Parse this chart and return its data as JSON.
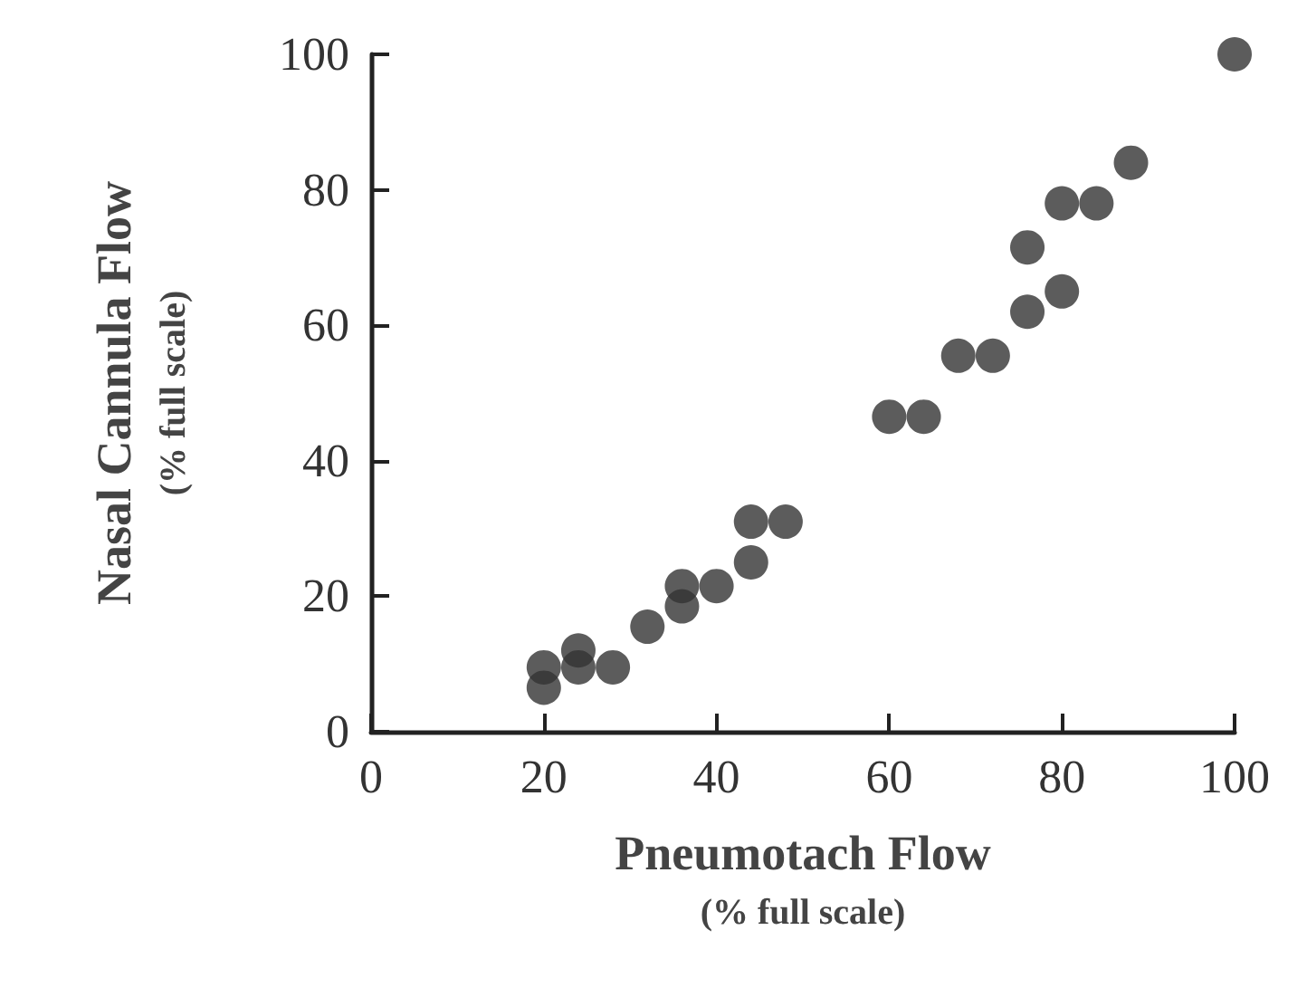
{
  "chart_data": {
    "type": "scatter",
    "xlabel": "Pneumotach Flow\n(% full scale)",
    "ylabel": "Nasal Cannula Flow\n(% full scale)",
    "x": [
      20,
      20,
      24,
      24,
      28,
      32,
      36,
      36,
      40,
      44,
      44,
      48,
      60,
      64,
      68,
      72,
      76,
      80,
      76,
      80,
      84,
      88,
      100
    ],
    "values": [
      6.5,
      9.5,
      12,
      9.5,
      9.5,
      15.5,
      18.5,
      21.5,
      21.5,
      25,
      31,
      31,
      46.5,
      46.5,
      55.5,
      55.5,
      62,
      65,
      71.5,
      78,
      78,
      84,
      100
    ],
    "color": "#333333",
    "marker": "circle",
    "grid": false,
    "xlim": [
      0,
      100
    ],
    "xticks": [
      0,
      20,
      40,
      60,
      80,
      100
    ],
    "ylim": [
      0,
      100
    ],
    "yticks": [
      0,
      20,
      40,
      60,
      80,
      100
    ]
  }
}
